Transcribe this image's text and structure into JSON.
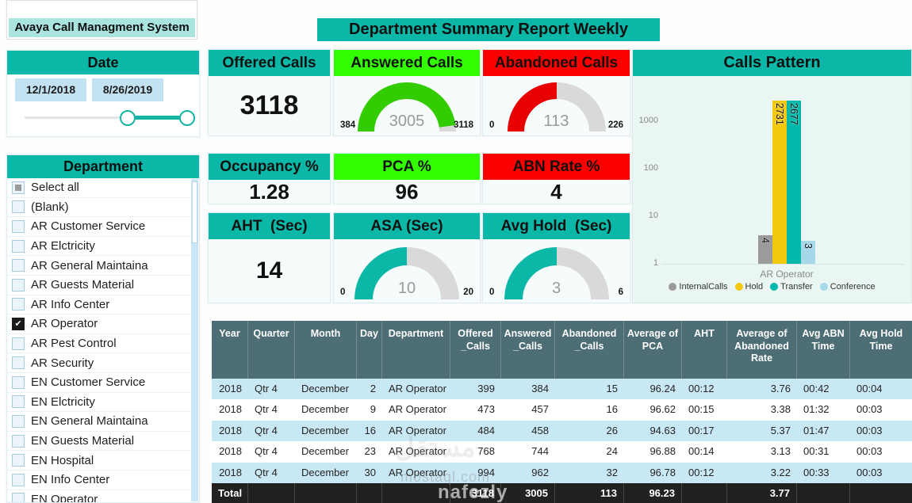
{
  "app_title": "Avaya Call Managment System",
  "report_title": "Department Summary Report Weekly",
  "theme": {
    "teal": "#0BB7A7",
    "green": "#33FF00",
    "red": "#FB0000",
    "table_header": "#4D6E74",
    "zebra_blue": "#C9E8F5",
    "total_row": "#232120"
  },
  "date_slicer": {
    "title": "Date",
    "start_date": "12/1/2018",
    "end_date": "8/26/2019"
  },
  "department_slicer": {
    "title": "Department",
    "items": [
      {
        "label": "Select all",
        "state": "partial"
      },
      {
        "label": "(Blank)",
        "state": "unchecked"
      },
      {
        "label": "AR Customer Service",
        "state": "unchecked"
      },
      {
        "label": "AR Elctricity",
        "state": "unchecked"
      },
      {
        "label": "AR General Maintaina",
        "state": "unchecked"
      },
      {
        "label": "AR Guests Material",
        "state": "unchecked"
      },
      {
        "label": "AR Info Center",
        "state": "unchecked"
      },
      {
        "label": "AR Operator",
        "state": "checked"
      },
      {
        "label": "AR Pest Control",
        "state": "unchecked"
      },
      {
        "label": "AR Security",
        "state": "unchecked"
      },
      {
        "label": "EN Customer Service",
        "state": "unchecked"
      },
      {
        "label": "EN Elctricity",
        "state": "unchecked"
      },
      {
        "label": "EN General Maintaina",
        "state": "unchecked"
      },
      {
        "label": "EN Guests Material",
        "state": "unchecked"
      },
      {
        "label": "EN Hospital",
        "state": "unchecked"
      },
      {
        "label": "EN Info Center",
        "state": "unchecked"
      },
      {
        "label": "EN Operator",
        "state": "unchecked"
      }
    ]
  },
  "kpis": {
    "offered": {
      "title": "Offered Calls",
      "value": "3118"
    },
    "answered": {
      "title": "Answered Calls",
      "value": 3005,
      "min": 384,
      "max": 3118,
      "color": "#33CC00"
    },
    "abandoned": {
      "title": "Abandoned Calls",
      "value": 113,
      "min": 0,
      "max": 226,
      "color": "#E80000"
    },
    "occupancy": {
      "title": "Occupancy %",
      "value": "1.28"
    },
    "pca": {
      "title": "PCA %",
      "value": "96"
    },
    "abn_rate": {
      "title": "ABN Rate %",
      "value": "4"
    },
    "aht": {
      "title": "AHT  (Sec)",
      "value": "14"
    },
    "asa": {
      "title": "ASA (Sec)",
      "value": 10,
      "min": 0,
      "max": 20,
      "color": "#0BB7A7"
    },
    "avg_hold": {
      "title": "Avg Hold  (Sec)",
      "value": 3,
      "min": 0,
      "max": 6,
      "color": "#0BB7A7"
    }
  },
  "chart_data": {
    "type": "bar",
    "title": "Calls Pattern",
    "y_scale": "log",
    "y_ticks": [
      1,
      10,
      100,
      1000
    ],
    "ylim": [
      1,
      3000
    ],
    "categories": [
      "AR Operator"
    ],
    "series": [
      {
        "name": "InternalCalls",
        "values": [
          4
        ],
        "color": "#9B9B9B"
      },
      {
        "name": "Hold",
        "values": [
          2731
        ],
        "color": "#F2C80F"
      },
      {
        "name": "Transfer",
        "values": [
          2677
        ],
        "color": "#01B8AA"
      },
      {
        "name": "Conference",
        "values": [
          3
        ],
        "color": "#A7D8EA"
      }
    ],
    "legend_position": "bottom",
    "grid": false
  },
  "table": {
    "columns": [
      "Year",
      "Quarter",
      "Month",
      "Day",
      "Department",
      "Offered _Calls",
      "Answered _Calls",
      "Abandoned _Calls",
      "Average of PCA",
      "AHT",
      "Average of Abandoned Rate",
      "Avg ABN Time",
      "Avg Hold Time"
    ],
    "rows": [
      [
        "2018",
        "Qtr 4",
        "December",
        "2",
        "AR Operator",
        "399",
        "384",
        "15",
        "96.24",
        "00:12",
        "3.76",
        "00:42",
        "00:04"
      ],
      [
        "2018",
        "Qtr 4",
        "December",
        "9",
        "AR Operator",
        "473",
        "457",
        "16",
        "96.62",
        "00:15",
        "3.38",
        "01:32",
        "00:03"
      ],
      [
        "2018",
        "Qtr 4",
        "December",
        "16",
        "AR Operator",
        "484",
        "458",
        "26",
        "94.63",
        "00:17",
        "5.37",
        "01:47",
        "00:03"
      ],
      [
        "2018",
        "Qtr 4",
        "December",
        "23",
        "AR Operator",
        "768",
        "744",
        "24",
        "96.88",
        "00:14",
        "3.13",
        "00:31",
        "00:03"
      ],
      [
        "2018",
        "Qtr 4",
        "December",
        "30",
        "AR Operator",
        "994",
        "962",
        "32",
        "96.78",
        "00:12",
        "3.22",
        "00:33",
        "00:03"
      ]
    ],
    "total": [
      "Total",
      "",
      "",
      "",
      "",
      "3118",
      "3005",
      "113",
      "96.23",
      "",
      "3.77",
      "",
      ""
    ]
  },
  "watermark": {
    "logo_text": "مستقل",
    "site": "mostaql.com",
    "brand": "nafezly"
  }
}
